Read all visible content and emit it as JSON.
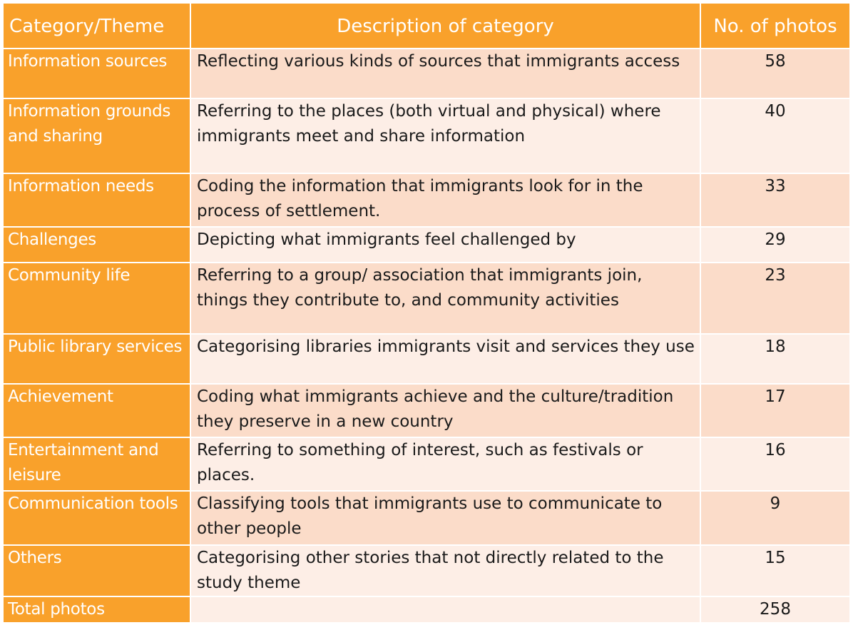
{
  "headers": {
    "category": "Category/Theme",
    "description": "Description of category",
    "count": "No. of photos"
  },
  "rows": [
    {
      "category": "Information sources",
      "description": "Reflecting various kinds of sources that immigrants access",
      "count": "58"
    },
    {
      "category": "Information grounds and sharing",
      "description": "Referring to the places (both virtual and physical) where immigrants meet and share information",
      "count": "40"
    },
    {
      "category": "Information needs",
      "description": "Coding the information that immigrants look for in the process of settlement.",
      "count": "33"
    },
    {
      "category": "Challenges",
      "description": "Depicting what immigrants feel challenged by",
      "count": "29"
    },
    {
      "category": "Community life",
      "description": "Referring to a group/ association that immigrants join, things they contribute to, and community activities",
      "count": "23"
    },
    {
      "category": "Public library services",
      "description": "Categorising libraries immigrants visit and services they use",
      "count": "18"
    },
    {
      "category": "Achievement",
      "description": "Coding what immigrants achieve and the culture/tradition they preserve in a new country",
      "count": "17"
    },
    {
      "category": "Entertainment and leisure",
      "description": "Referring to something of interest, such as festivals or places.",
      "count": "16"
    },
    {
      "category": "Communication tools",
      "description": "Classifying tools that immigrants use to communicate to other people",
      "count": "9"
    },
    {
      "category": "Others",
      "description": "Categorising other stories that not directly related to the study theme",
      "count": "15"
    }
  ],
  "total": {
    "category": "Total photos",
    "description": "",
    "count": "258"
  },
  "colors": {
    "header_bg": "#F9A12B",
    "category_bg": "#F9A12B",
    "row_odd_bg": "#FBDCC9",
    "row_even_bg": "#FDEEE6"
  }
}
